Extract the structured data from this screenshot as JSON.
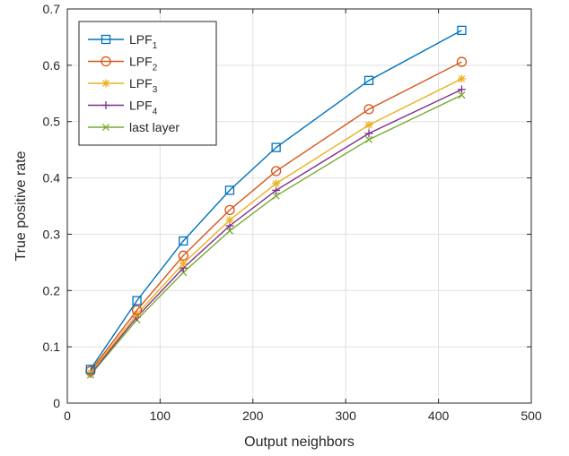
{
  "chart_data": {
    "type": "line",
    "xlabel": "Output neighbors",
    "ylabel": "True positive rate",
    "xlim": [
      0,
      500
    ],
    "ylim": [
      0,
      0.7
    ],
    "xticks": [
      0,
      100,
      200,
      300,
      400,
      500
    ],
    "yticks": [
      0,
      0.1,
      0.2,
      0.3,
      0.4,
      0.5,
      0.6,
      0.7
    ],
    "grid": true,
    "legend_position": "top-left",
    "x": [
      25,
      75,
      125,
      175,
      225,
      325,
      425
    ],
    "series": [
      {
        "name": "LPF",
        "subscript": "1",
        "color": "#0072BD",
        "marker": "square",
        "values": [
          0.06,
          0.182,
          0.288,
          0.378,
          0.454,
          0.573,
          0.662
        ]
      },
      {
        "name": "LPF",
        "subscript": "2",
        "color": "#D95319",
        "marker": "circle",
        "values": [
          0.057,
          0.165,
          0.262,
          0.343,
          0.412,
          0.522,
          0.606
        ]
      },
      {
        "name": "LPF",
        "subscript": "3",
        "color": "#EDB120",
        "marker": "asterisk",
        "values": [
          0.054,
          0.158,
          0.248,
          0.325,
          0.39,
          0.494,
          0.576
        ]
      },
      {
        "name": "LPF",
        "subscript": "4",
        "color": "#7E2F8E",
        "marker": "plus",
        "values": [
          0.052,
          0.153,
          0.24,
          0.315,
          0.378,
          0.479,
          0.557
        ]
      },
      {
        "name": "last layer",
        "subscript": "",
        "color": "#77AC30",
        "marker": "x",
        "values": [
          0.05,
          0.148,
          0.232,
          0.306,
          0.368,
          0.468,
          0.547
        ]
      }
    ]
  }
}
